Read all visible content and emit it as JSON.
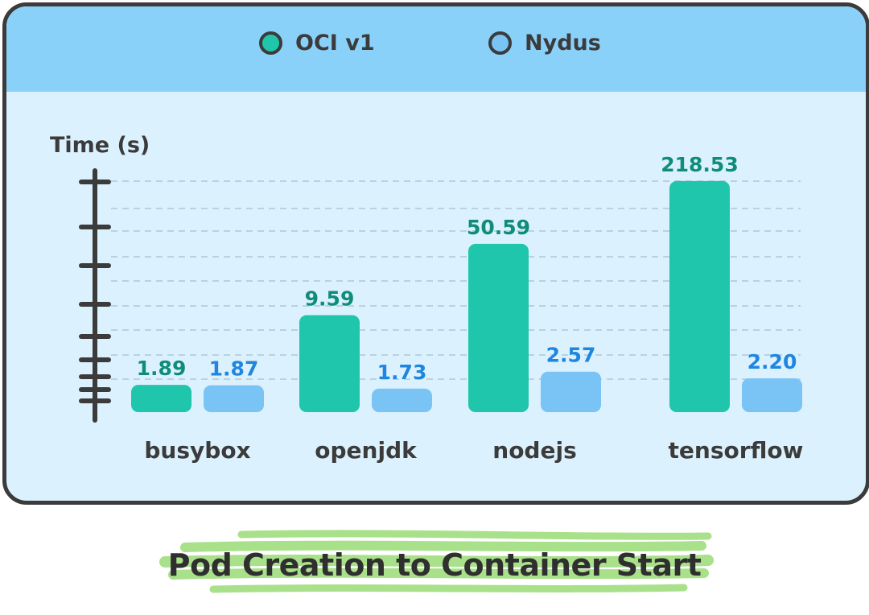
{
  "legend": {
    "items": [
      {
        "label": "OCI v1",
        "color": "#1fc6ab"
      },
      {
        "label": "Nydus",
        "color": "#79c3f5"
      }
    ]
  },
  "chart_data": {
    "type": "bar",
    "title": "Pod Creation to Container Start",
    "ylabel": "Time (s)",
    "xlabel": "",
    "categories": [
      "busybox",
      "openjdk",
      "nodejs",
      "tensorflow"
    ],
    "series": [
      {
        "name": "OCI v1",
        "values": [
          1.89,
          9.59,
          50.59,
          218.53
        ],
        "label_color": "#0f8d78"
      },
      {
        "name": "Nydus",
        "values": [
          1.87,
          1.73,
          2.57,
          2.2
        ],
        "label_color": "#1e86e0"
      }
    ],
    "value_labels": [
      [
        "1.89",
        "9.59",
        "50.59",
        "218.53"
      ],
      [
        "1.87",
        "1.73",
        "2.57",
        "2.20"
      ]
    ],
    "scale": "log",
    "grid": true,
    "legend_position": "top"
  },
  "colors": {
    "frame": "#3b3b3b",
    "header": "#8ad1fa",
    "panel": "#dcf1fe",
    "highlight": "#a9e08a"
  }
}
